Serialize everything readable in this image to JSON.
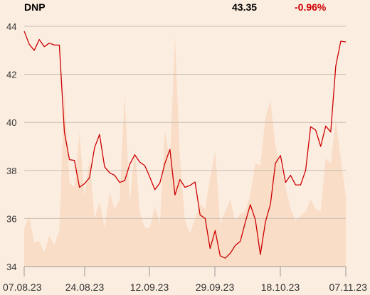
{
  "header": {
    "ticker": "DNP",
    "price": "43.35",
    "change": "-0.96%"
  },
  "colors": {
    "line": "#cc0000",
    "volume": "#f9ddc6",
    "background": "#fcede1",
    "grid": "#c8bdb3",
    "axis": "#999999"
  },
  "chart_data": {
    "type": "line",
    "title": "",
    "xlabel": "",
    "ylabel": "",
    "ylim": [
      34,
      44
    ],
    "yticks": [
      "34",
      "36",
      "38",
      "40",
      "42",
      "44"
    ],
    "xtick_labels": [
      "07.08.23",
      "24.08.23",
      "12.09.23",
      "29.09.23",
      "18.10.23",
      "07.11.23"
    ],
    "grid": true,
    "series": [
      {
        "values": [
          43.8,
          43.25,
          43.0,
          43.45,
          43.15,
          43.3,
          43.22,
          43.22,
          39.6,
          38.45,
          38.42,
          37.3,
          37.45,
          37.7,
          38.95,
          39.5,
          38.15,
          37.9,
          37.8,
          37.5,
          37.58,
          38.25,
          38.65,
          38.35,
          38.2,
          37.72,
          37.2,
          37.48,
          38.3,
          38.88,
          36.98,
          37.62,
          37.3,
          37.38,
          37.52,
          36.15,
          36.0,
          34.75,
          35.5,
          34.45,
          34.35,
          34.55,
          34.88,
          35.05,
          35.85,
          36.58,
          35.95,
          34.5,
          35.85,
          36.6,
          38.3,
          38.62,
          37.5,
          37.8,
          37.4,
          37.4,
          38.0,
          39.82,
          39.68,
          39.0,
          39.85,
          39.6,
          42.35,
          43.38,
          43.35
        ]
      },
      {
        "values": [
          35.6,
          36.1,
          35.0,
          35.05,
          34.6,
          35.3,
          34.9,
          35.5,
          41.3,
          37.5,
          37.3,
          39.6,
          36.9,
          38.5,
          36.0,
          36.7,
          35.6,
          37.1,
          36.4,
          36.8,
          41.2,
          36.6,
          38.9,
          36.3,
          35.6,
          35.6,
          36.5,
          35.8,
          39.7,
          38.3,
          43.6,
          38.5,
          35.9,
          35.4,
          36.0,
          36.6,
          36.4,
          37.7,
          38.8,
          35.8,
          36.3,
          36.8,
          35.9,
          36.2,
          36.3,
          37.0,
          38.3,
          38.2,
          40.2,
          40.9,
          39.0,
          38.2,
          37.3,
          36.4,
          35.9,
          36.1,
          36.3,
          36.8,
          36.4,
          36.3,
          38.5,
          38.3,
          40.1,
          38.5,
          36.9
        ]
      }
    ]
  }
}
